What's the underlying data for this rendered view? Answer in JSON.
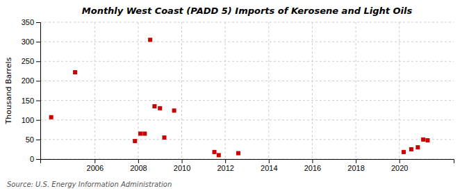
{
  "chart_data": {
    "type": "scatter",
    "title": "Monthly West Coast (PADD 5) Imports of Kerosene and Light Oils",
    "ylabel": "Thousand Barrels",
    "source": "Source: U.S. Energy Information Administration",
    "x": [
      2004.0,
      2005.1,
      2007.85,
      2008.1,
      2008.3,
      2008.55,
      2008.75,
      2009.0,
      2009.2,
      2009.65,
      2011.5,
      2011.7,
      2012.6,
      2020.2,
      2020.55,
      2020.85,
      2021.1,
      2021.3
    ],
    "values": [
      107,
      222,
      46,
      65,
      65,
      305,
      135,
      130,
      55,
      124,
      18,
      10,
      15,
      18,
      25,
      30,
      50,
      48
    ],
    "color": "#cc0000",
    "marker": "square",
    "xlim": [
      2003.5,
      2022.5
    ],
    "ylim": [
      0,
      350
    ],
    "xticks": [
      2006,
      2008,
      2010,
      2012,
      2014,
      2016,
      2018,
      2020
    ],
    "yticks": [
      0,
      50,
      100,
      150,
      200,
      250,
      300,
      350
    ],
    "grid": true
  }
}
